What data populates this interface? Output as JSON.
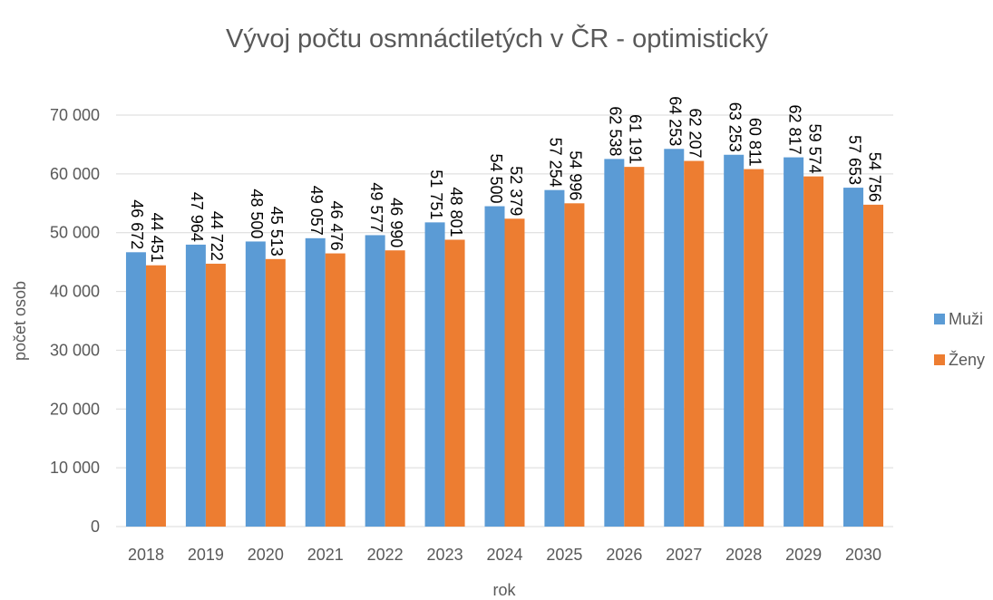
{
  "chart_data": {
    "type": "bar",
    "title": "Vývoj počtu osmnáctiletých v ČR - optimistický",
    "x_label": "rok",
    "y_label": "počet osob",
    "categories": [
      "2018",
      "2019",
      "2020",
      "2021",
      "2022",
      "2023",
      "2024",
      "2025",
      "2026",
      "2027",
      "2028",
      "2029",
      "2030"
    ],
    "series": [
      {
        "name": "Muži",
        "color": "#5b9bd5",
        "values": [
          46672,
          47964,
          48500,
          49057,
          49577,
          51751,
          54500,
          57254,
          62538,
          64253,
          63253,
          62817,
          57653
        ],
        "value_labels": [
          "46 672",
          "47 964",
          "48 500",
          "49 057",
          "49 577",
          "51 751",
          "54 500",
          "57 254",
          "62 538",
          "64 253",
          "63 253",
          "62 817",
          "57 653"
        ]
      },
      {
        "name": "Ženy",
        "color": "#ed7d31",
        "values": [
          44451,
          44722,
          45513,
          46476,
          46990,
          48801,
          52379,
          54996,
          61191,
          62207,
          60811,
          59574,
          54756
        ],
        "value_labels": [
          "44 451",
          "44 722",
          "45 513",
          "46 476",
          "46 990",
          "48 801",
          "52 379",
          "54 996",
          "61 191",
          "62 207",
          "60 811",
          "59 574",
          "54 756"
        ]
      }
    ],
    "ylim": [
      0,
      70000
    ],
    "yticks": [
      0,
      {
        "value": 10000,
        "label": "10 000"
      },
      {
        "value": 20000,
        "label": "20 000"
      },
      {
        "value": 30000,
        "label": "30 000"
      },
      {
        "value": 40000,
        "label": "40 000"
      },
      {
        "value": 50000,
        "label": "50 000"
      },
      {
        "value": 60000,
        "label": "60 000"
      },
      {
        "value": 70000,
        "label": "70 000"
      }
    ],
    "grid": true,
    "legend": "right"
  }
}
